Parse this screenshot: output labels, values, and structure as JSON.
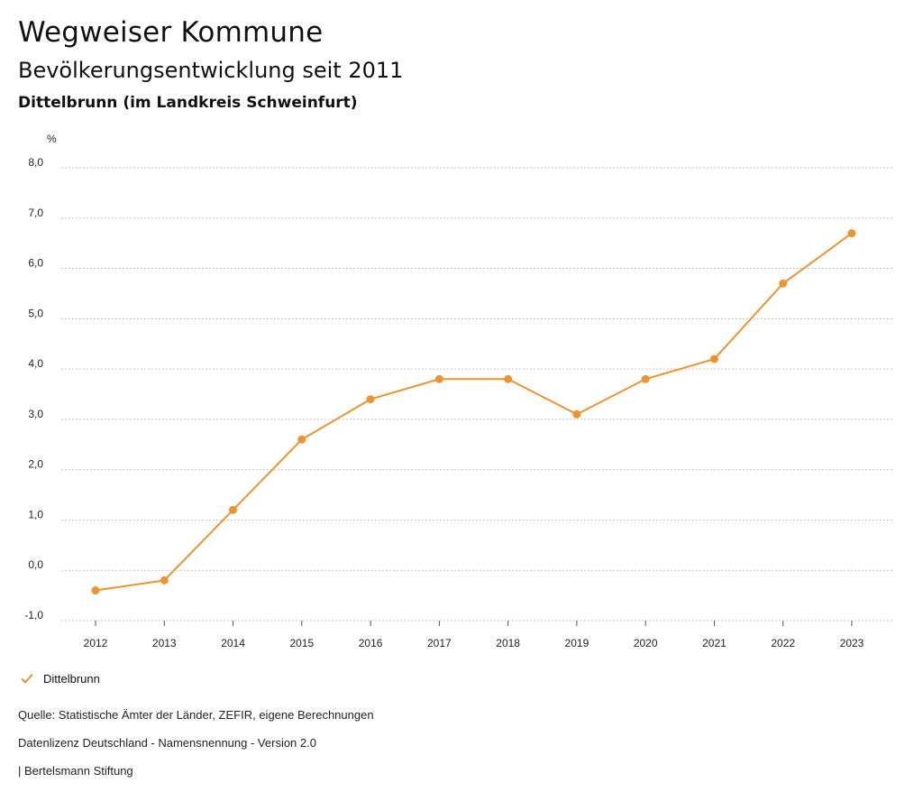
{
  "header": {
    "title": "Wegweiser Kommune",
    "subtitle": "Bevölkerungsentwicklung seit 2011",
    "region": "Dittelbrunn (im Landkreis Schweinfurt)"
  },
  "chart_data": {
    "type": "line",
    "unit_label": "%",
    "x": [
      "2012",
      "2013",
      "2014",
      "2015",
      "2016",
      "2017",
      "2018",
      "2019",
      "2020",
      "2021",
      "2022",
      "2023"
    ],
    "series": [
      {
        "name": "Dittelbrunn",
        "color": "#EB9431",
        "values": [
          -0.4,
          -0.2,
          1.2,
          2.6,
          3.4,
          3.8,
          3.8,
          3.1,
          3.8,
          4.2,
          5.7,
          6.7
        ]
      }
    ],
    "ylim": [
      -1,
      8
    ],
    "yticks": [
      "-1,0",
      "0,0",
      "1,0",
      "2,0",
      "3,0",
      "4,0",
      "5,0",
      "6,0",
      "7,0",
      "8,0"
    ],
    "grid": true,
    "legend_position": "bottom-left"
  },
  "legend": {
    "label": "Dittelbrunn"
  },
  "footer": {
    "source": "Quelle: Statistische Ämter der Länder, ZEFIR, eigene Berechnungen",
    "license": "Datenlizenz Deutschland - Namensnennung - Version 2.0",
    "publisher": "| Bertelsmann Stiftung"
  }
}
